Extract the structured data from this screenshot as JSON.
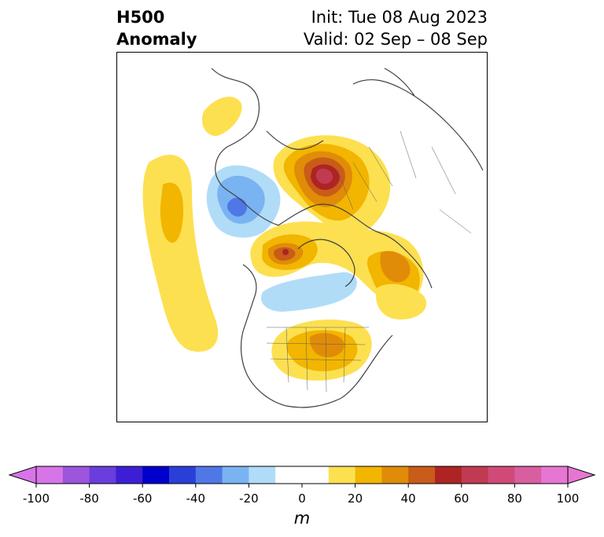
{
  "title": {
    "left_line1": "H500",
    "left_line2": "Anomaly",
    "init": "Init: Tue 08 Aug 2023",
    "valid": "Valid: 02 Sep – 08 Sep"
  },
  "colorbar": {
    "unit_label": "m",
    "ticks": [
      "-100",
      "-80",
      "-60",
      "-40",
      "-20",
      "0",
      "20",
      "40",
      "60",
      "80",
      "100"
    ],
    "min": -100,
    "max": 100,
    "step": 10,
    "colors": [
      "#d775e8",
      "#9c55dc",
      "#6a3ddc",
      "#3c1fd4",
      "#0000cc",
      "#2a3fd8",
      "#4f78e6",
      "#7ab3f2",
      "#b0dcf8",
      "#ffffff",
      "#ffffff",
      "#fde050",
      "#f2b500",
      "#e08c08",
      "#c85c18",
      "#ae2424",
      "#c03a52",
      "#d04a78",
      "#d85ea0",
      "#e676d2"
    ],
    "extend_low_color": "#d775e8",
    "extend_high_color": "#e676d2"
  },
  "map": {
    "projection": "polar-stereographic",
    "hemisphere": "Northern",
    "coastline_color": "#404040",
    "anomaly_centers": [
      "positive over northern Europe",
      "positive over Hudson Bay",
      "positive over the Great Lakes and eastern North America",
      "positive over the central Pacific",
      "negative over eastern Russia",
      "weak negative near Labrador"
    ]
  }
}
